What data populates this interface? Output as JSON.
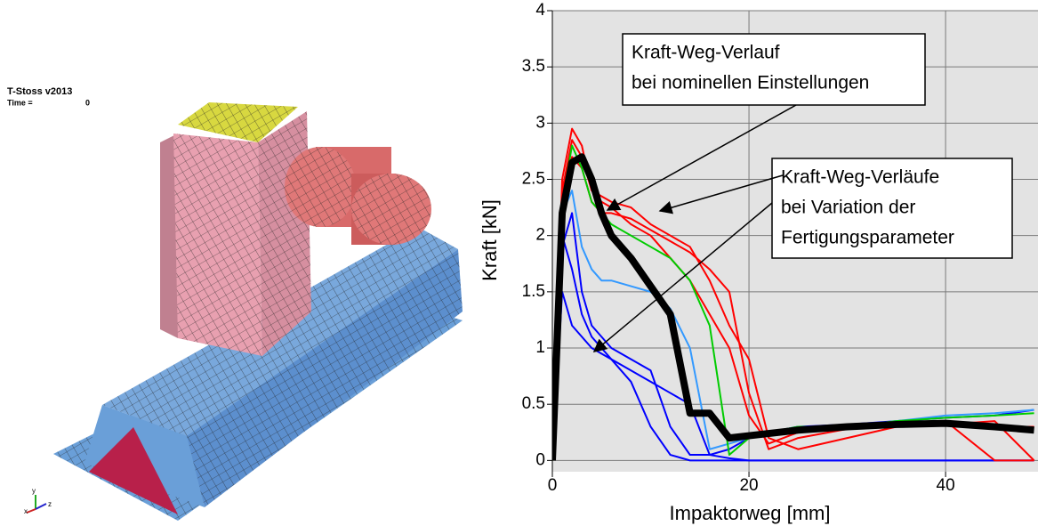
{
  "model_view": {
    "title": "T-Stoss v2013",
    "time_label": "Time =",
    "time_value": "0",
    "axes": [
      "x",
      "y",
      "z"
    ]
  },
  "chart_data": {
    "type": "line",
    "x_label": "Impaktorweg [mm]",
    "y_label": "Kraft [kN]",
    "x": [
      0,
      1,
      2,
      3,
      4,
      5,
      6,
      8,
      10,
      12,
      14,
      16,
      18,
      20,
      22,
      25,
      30,
      35,
      40,
      45,
      49
    ],
    "series": [
      {
        "color": "#0000ff",
        "line_width": 2,
        "values": [
          0,
          1.9,
          2.2,
          1.5,
          1.2,
          1.1,
          1.0,
          0.9,
          0.8,
          0.3,
          0.05,
          0.05,
          0.02,
          0,
          0,
          0,
          0,
          0,
          0,
          0,
          0
        ]
      },
      {
        "color": "#0000ff",
        "line_width": 2,
        "values": [
          0,
          2.0,
          1.7,
          1.3,
          1.1,
          1.0,
          0.9,
          0.7,
          0.3,
          0.05,
          0,
          0,
          0,
          0,
          0,
          0,
          0,
          0,
          0,
          0,
          0
        ]
      },
      {
        "color": "#0000ff",
        "line_width": 2,
        "values": [
          0,
          1.5,
          1.2,
          1.1,
          1.0,
          0.95,
          0.9,
          0.8,
          0.7,
          0.6,
          0.5,
          0.05,
          0.1,
          0.2,
          0.25,
          0.3,
          0.32,
          0.35,
          0.38,
          0.4,
          0.45
        ]
      },
      {
        "color": "#3399ff",
        "line_width": 2,
        "values": [
          0,
          2.2,
          2.4,
          1.9,
          1.7,
          1.6,
          1.6,
          1.55,
          1.5,
          1.35,
          1.0,
          0.1,
          0.15,
          0.2,
          0.25,
          0.3,
          0.3,
          0.35,
          0.4,
          0.42,
          0.45
        ]
      },
      {
        "color": "#ff0000",
        "line_width": 2,
        "values": [
          0,
          2.4,
          2.85,
          2.7,
          2.4,
          2.3,
          2.25,
          2.1,
          2.0,
          1.8,
          1.6,
          1.3,
          1.0,
          0.4,
          0.15,
          0.25,
          0.3,
          0.3,
          0.35,
          0.3,
          0.3
        ]
      },
      {
        "color": "#ff0000",
        "line_width": 2,
        "values": [
          0,
          2.5,
          2.95,
          2.8,
          2.4,
          2.35,
          2.3,
          2.25,
          2.1,
          2.0,
          1.9,
          1.6,
          1.2,
          0.9,
          0.2,
          0.1,
          0.2,
          0.3,
          0.35,
          0,
          0
        ]
      },
      {
        "color": "#ff0000",
        "line_width": 2,
        "values": [
          0,
          2.3,
          2.7,
          2.6,
          2.3,
          2.2,
          2.2,
          2.15,
          2.05,
          1.95,
          1.85,
          1.7,
          1.5,
          0.6,
          0.1,
          0.2,
          0.28,
          0.3,
          0.32,
          0.35,
          0
        ]
      },
      {
        "color": "#00cc00",
        "line_width": 2,
        "values": [
          0,
          2.3,
          2.8,
          2.6,
          2.3,
          2.2,
          2.1,
          2.0,
          1.9,
          1.8,
          1.6,
          1.2,
          0.05,
          0.2,
          0.25,
          0.3,
          0.3,
          0.35,
          0.38,
          0.4,
          0.42
        ]
      },
      {
        "color": "#000000",
        "line_width": 8,
        "values": [
          0,
          2.2,
          2.65,
          2.7,
          2.5,
          2.2,
          2.0,
          1.8,
          1.55,
          1.3,
          0.42,
          0.42,
          0.2,
          0.22,
          0.24,
          0.27,
          0.3,
          0.32,
          0.33,
          0.3,
          0.27
        ]
      }
    ],
    "xlim": [
      0,
      49.4
    ],
    "ylim": [
      -0.1,
      4
    ],
    "xticks": [
      0,
      20,
      40
    ],
    "yticks": [
      0,
      0.5,
      1,
      1.5,
      2,
      2.5,
      3,
      3.5,
      4
    ],
    "grid": true,
    "annotations": [
      {
        "lines": [
          "Kraft-Weg-Verlauf",
          "bei nominellen Einstellungen"
        ]
      },
      {
        "lines": [
          "Kraft-Weg-Verläufe",
          "bei Variation der",
          "Fertigungsparameter"
        ]
      }
    ]
  }
}
